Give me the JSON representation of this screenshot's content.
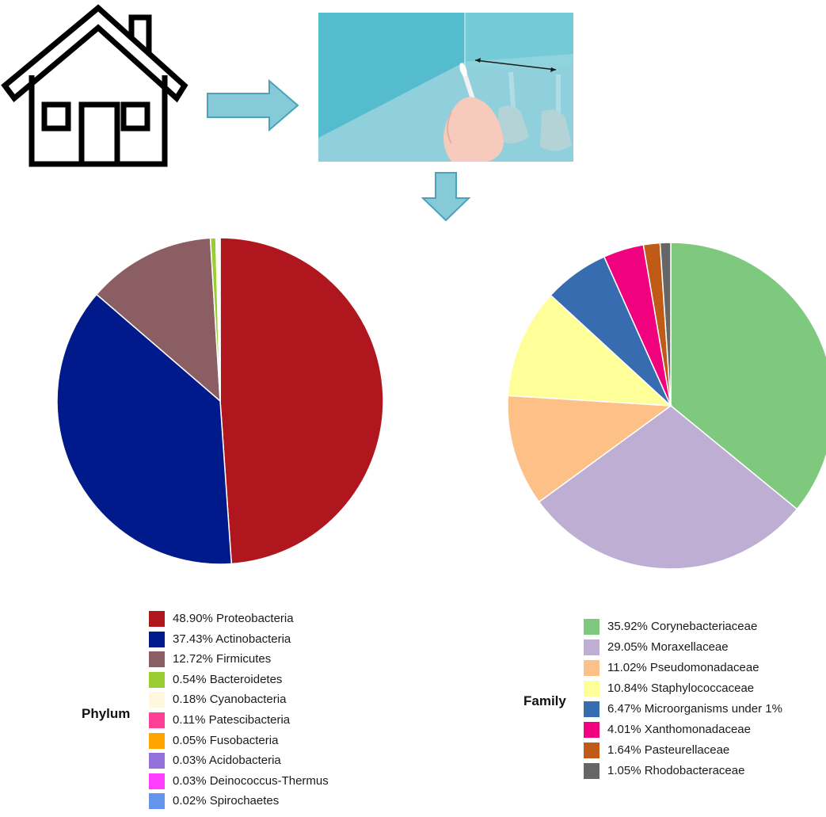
{
  "chart_data": [
    {
      "type": "pie",
      "legend_title": "Phylum",
      "legend_placement": "bottom",
      "slices": [
        {
          "label": "48.90%  Proteobacteria",
          "value": 48.9,
          "color": "#b0161e"
        },
        {
          "label": "37.43%  Actinobacteria",
          "value": 37.43,
          "color": "#001a8c"
        },
        {
          "label": "12.72%  Firmicutes",
          "value": 12.72,
          "color": "#8b5e63"
        },
        {
          "label": "0.54%  Bacteroidetes",
          "value": 0.54,
          "color": "#9acd32"
        },
        {
          "label": "0.18%  Cyanobacteria",
          "value": 0.18,
          "color": "#fff8dc"
        },
        {
          "label": "0.11%  Patescibacteria",
          "value": 0.11,
          "color": "#ff3e96"
        },
        {
          "label": "0.05%  Fusobacteria",
          "value": 0.05,
          "color": "#ffa500"
        },
        {
          "label": "0.03%  Acidobacteria",
          "value": 0.03,
          "color": "#9370db"
        },
        {
          "label": "0.03%  Deinococcus-Thermus",
          "value": 0.03,
          "color": "#ff3eff"
        },
        {
          "label": "0.02%  Spirochaetes",
          "value": 0.02,
          "color": "#6495ed"
        }
      ]
    },
    {
      "type": "pie",
      "legend_title": "Family",
      "legend_placement": "bottom-right",
      "slices": [
        {
          "label": "35.92%  Corynebacteriaceae",
          "value": 35.92,
          "color": "#7fc97f"
        },
        {
          "label": "29.05%  Moraxellaceae",
          "value": 29.05,
          "color": "#beaed4"
        },
        {
          "label": "11.02%  Pseudomonadaceae",
          "value": 11.02,
          "color": "#fdc086"
        },
        {
          "label": "10.84%  Staphylococcaceae",
          "value": 10.84,
          "color": "#ffff99"
        },
        {
          "label": "6.47%  Microorganisms under 1%",
          "value": 6.47,
          "color": "#386cb0"
        },
        {
          "label": "4.01%  Xanthomonadaceae",
          "value": 4.01,
          "color": "#f0027f"
        },
        {
          "label": "1.64%  Pasteurellaceae",
          "value": 1.64,
          "color": "#bf5b17"
        },
        {
          "label": "1.05%  Rhodobacteraceae",
          "value": 1.05,
          "color": "#666666"
        }
      ]
    }
  ],
  "icons": {
    "house": "house-icon",
    "arrow_right": "arrow-right-icon",
    "arrow_down": "arrow-down-icon",
    "swab": "swab-sampling-illustration"
  },
  "colors": {
    "arrow_fill": "#86cad8",
    "arrow_stroke": "#4aa3b8",
    "swab_bg": "#5cc3d3"
  }
}
